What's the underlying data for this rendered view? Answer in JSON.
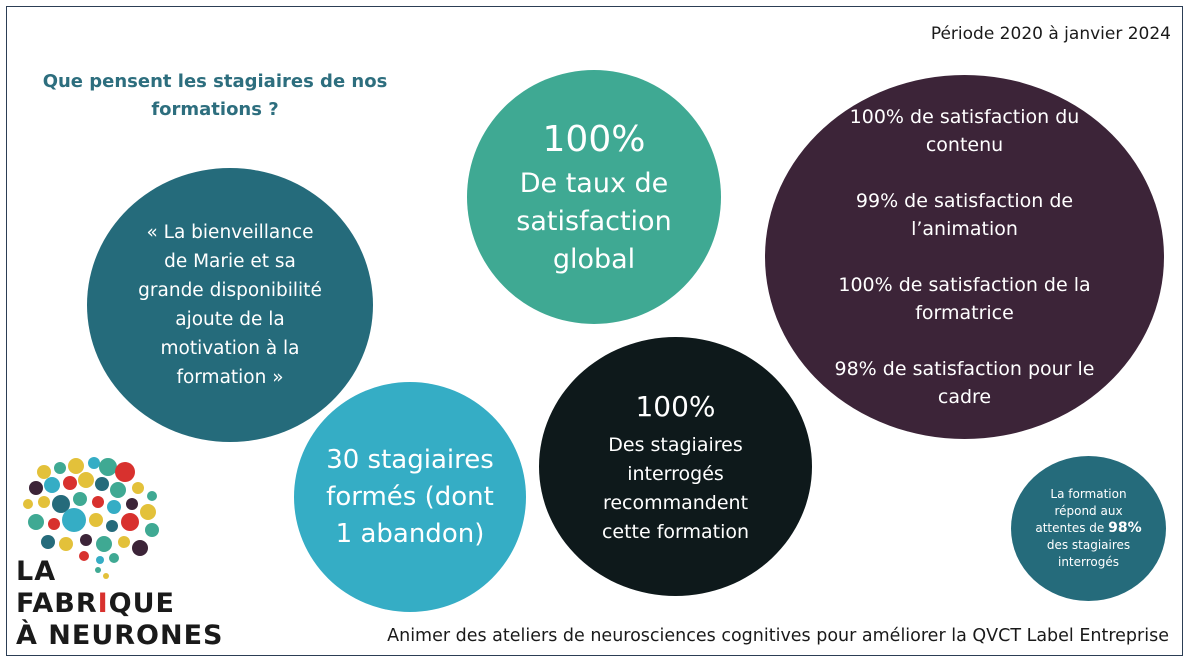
{
  "period": "Période 2020 à janvier 2024",
  "question": "Que pensent les stagiaires de nos formations ?",
  "quote": "« La bienveillance de Marie et sa grande disponibilité ajoute de la motivation à la formation »",
  "global": {
    "value": "100%",
    "label": "De taux de satisfaction global"
  },
  "trainees": "30 stagiaires formés (dont 1 abandon)",
  "recommend": {
    "value": "100%",
    "label": "Des stagiaires interrogés recommandent cette formation"
  },
  "satisfaction": [
    {
      "pct": "100%",
      "text": "de satisfaction du contenu"
    },
    {
      "pct": "99%",
      "text": "de satisfaction de l’animation"
    },
    {
      "pct": "100%",
      "text": "de satisfaction de la formatrice"
    },
    {
      "pct": "98%",
      "text": "de satisfaction pour le cadre"
    }
  ],
  "small": {
    "before": "La formation répond aux attentes de",
    "pct": "98%",
    "after": "des stagiaires interrogés"
  },
  "logo": {
    "line1": "LA",
    "line2_a": "FABR",
    "line2_b": "I",
    "line2_c": "QUE",
    "line3": "À NEURONES"
  },
  "footer": "Animer des ateliers de neurosciences cognitives pour améliorer la QVCT Label Entreprise",
  "colors": {
    "teal_dark": "#256b7b",
    "green": "#3fa993",
    "cyan": "#35adc5",
    "black": "#0e191b",
    "plum": "#3c2438"
  }
}
